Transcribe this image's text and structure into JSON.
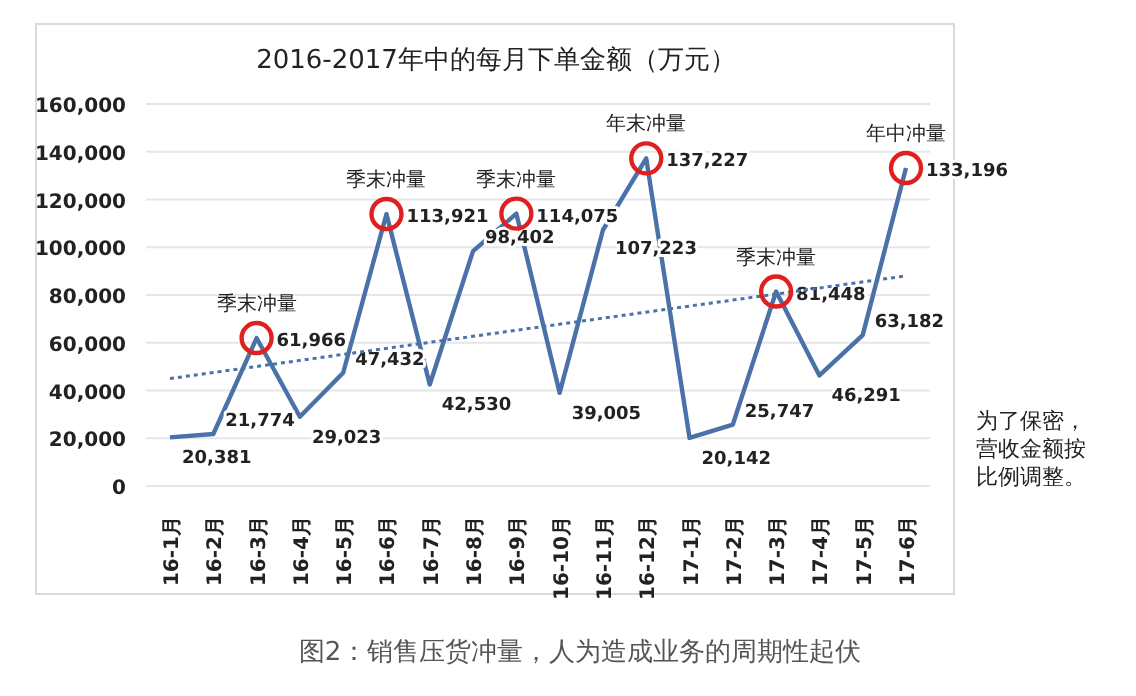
{
  "chart_data": {
    "type": "line",
    "title": "2016-2017年中的每月下单金额（万元）",
    "categories": [
      "16-1月",
      "16-2月",
      "16-3月",
      "16-4月",
      "16-5月",
      "16-6月",
      "16-7月",
      "16-8月",
      "16-9月",
      "16-10月",
      "16-11月",
      "16-12月",
      "17-1月",
      "17-2月",
      "17-3月",
      "17-4月",
      "17-5月",
      "17-6月"
    ],
    "series": [
      {
        "color": "#4a72a8",
        "values": [
          20381,
          21774,
          61966,
          29023,
          47432,
          113921,
          42530,
          98402,
          114075,
          39005,
          107223,
          137227,
          20142,
          25747,
          81448,
          46291,
          63182,
          133196
        ],
        "value_labels": [
          "20,381",
          "21,774",
          "61,966",
          "29,023",
          "47,432",
          "113,921",
          "42,530",
          "98,402",
          "114,075",
          "39,005",
          "107,223",
          "137,227",
          "20,142",
          "25,747",
          "81,448",
          "46,291",
          "63,182",
          "133,196"
        ]
      },
      {
        "type": "line",
        "color": "#4a72a8",
        "line_style": "dotted",
        "x": [
          "16-1月",
          "17-6月"
        ],
        "values": [
          45000,
          88000
        ]
      },
      {
        "type": "scatter",
        "color": "#e02020",
        "marker": "circle",
        "x": [
          "16-3月",
          "16-6月",
          "16-9月",
          "16-12月",
          "17-3月",
          "17-6月"
        ],
        "values": [
          61966,
          113921,
          114075,
          137227,
          81448,
          133196
        ]
      }
    ],
    "ylim": [
      0,
      160000
    ],
    "yticks": [
      0,
      {
        "value": 20000,
        "label": "20,000"
      },
      {
        "value": 40000,
        "label": "40,000"
      },
      {
        "value": 60000,
        "label": "60,000"
      },
      {
        "value": 80000,
        "label": "80,000"
      },
      {
        "value": 100000,
        "label": "100,000"
      },
      {
        "value": 120000,
        "label": "120,000"
      },
      {
        "value": 140000,
        "label": "140,000"
      },
      {
        "value": 160000,
        "label": "160,000"
      }
    ],
    "grid": "y",
    "marker": "none",
    "annotations": [
      {
        "text": "季末冲量",
        "x": "16-3月",
        "y": 61966
      },
      {
        "text": "季末冲量",
        "x": "16-6月",
        "y": 113921
      },
      {
        "text": "季末冲量",
        "x": "16-9月",
        "y": 114075
      },
      {
        "text": "年末冲量",
        "x": "16-12月",
        "y": 137227
      },
      {
        "text": "季末冲量",
        "x": "17-3月",
        "y": 81448
      },
      {
        "text": "年中冲量",
        "x": "17-6月",
        "y": 133196
      },
      "为了保密，营收金额按比例调整。",
      "图2：销售压货冲量，人为造成业务的周期性起伏"
    ]
  }
}
